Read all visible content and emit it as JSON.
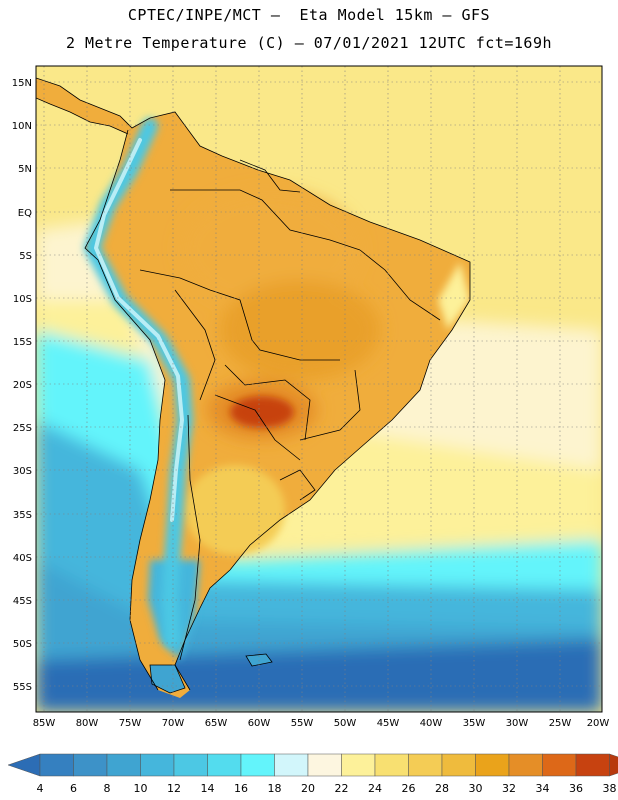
{
  "header": {
    "title_line1": "CPTEC/INPE/MCT –  Eta Model 15km – GFS",
    "title_line2": "2 Metre Temperature (C) – 07/01/2021 12UTC fct=169h"
  },
  "axes": {
    "lat_labels": [
      "15N",
      "10N",
      "5N",
      "EQ",
      "5S",
      "10S",
      "15S",
      "20S",
      "25S",
      "30S",
      "35S",
      "40S",
      "45S",
      "50S",
      "55S"
    ],
    "lon_labels": [
      "85W",
      "80W",
      "75W",
      "70W",
      "65W",
      "60W",
      "55W",
      "50W",
      "45W",
      "40W",
      "35W",
      "30W",
      "25W",
      "20W"
    ]
  },
  "colorbar": {
    "labels": [
      "4",
      "6",
      "8",
      "10",
      "12",
      "14",
      "16",
      "18",
      "20",
      "22",
      "24",
      "26",
      "28",
      "30",
      "32",
      "34",
      "36",
      "38"
    ],
    "colors": [
      "#2c6db5",
      "#3580c0",
      "#3d92c8",
      "#3fa4d1",
      "#45b6dc",
      "#4cc8e4",
      "#53dcee",
      "#63f4fb",
      "#d2f6fb",
      "#fdf6e0",
      "#fdf19a",
      "#f8e071",
      "#f4cc55",
      "#efbb3d",
      "#eaa31b",
      "#e58e27",
      "#dd6818",
      "#c74210",
      "#b8390e"
    ]
  },
  "map_colors": {
    "ocean_warm": "#fae889",
    "ocean_mid": "#fdf4cf",
    "ocean_cool": "#63f4fb",
    "ocean_cold": "#3fa4d1",
    "ocean_coldest": "#2c6db5",
    "land_hot": "#f0ad3c",
    "land_hotter": "#e58e27",
    "land_hottest": "#c74210",
    "andes": "#4cc8e4"
  }
}
